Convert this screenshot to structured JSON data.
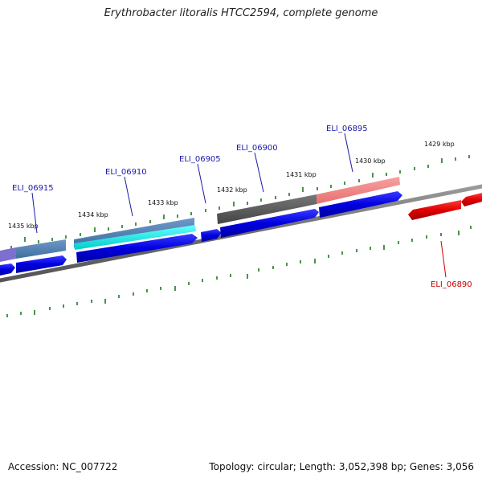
{
  "title": "Erythrobacter litoralis HTCC2594, complete genome",
  "footer": {
    "accession": "Accession: NC_007722",
    "topology": "Topology: circular; Length: 3,052,398 bp; Genes: 3,056"
  },
  "kbp_labels": [
    "1435 kbp",
    "1434 kbp",
    "1433 kbp",
    "1432 kbp",
    "1431 kbp",
    "1430 kbp",
    "1429 kbp"
  ],
  "gene_labels": {
    "eli_06915": "ELI_06915",
    "eli_06910": "ELI_06910",
    "eli_06905": "ELI_06905",
    "eli_06900": "ELI_06900",
    "eli_06895": "ELI_06895",
    "eli_06890": "ELI_06890"
  },
  "colors": {
    "forward_gene": "#0a0ae6",
    "reverse_gene": "#e60000",
    "backbone": "#808080",
    "tick": "#1a7a1a",
    "label_blue": "#1a1aa8",
    "label_red": "#cc0000"
  }
}
